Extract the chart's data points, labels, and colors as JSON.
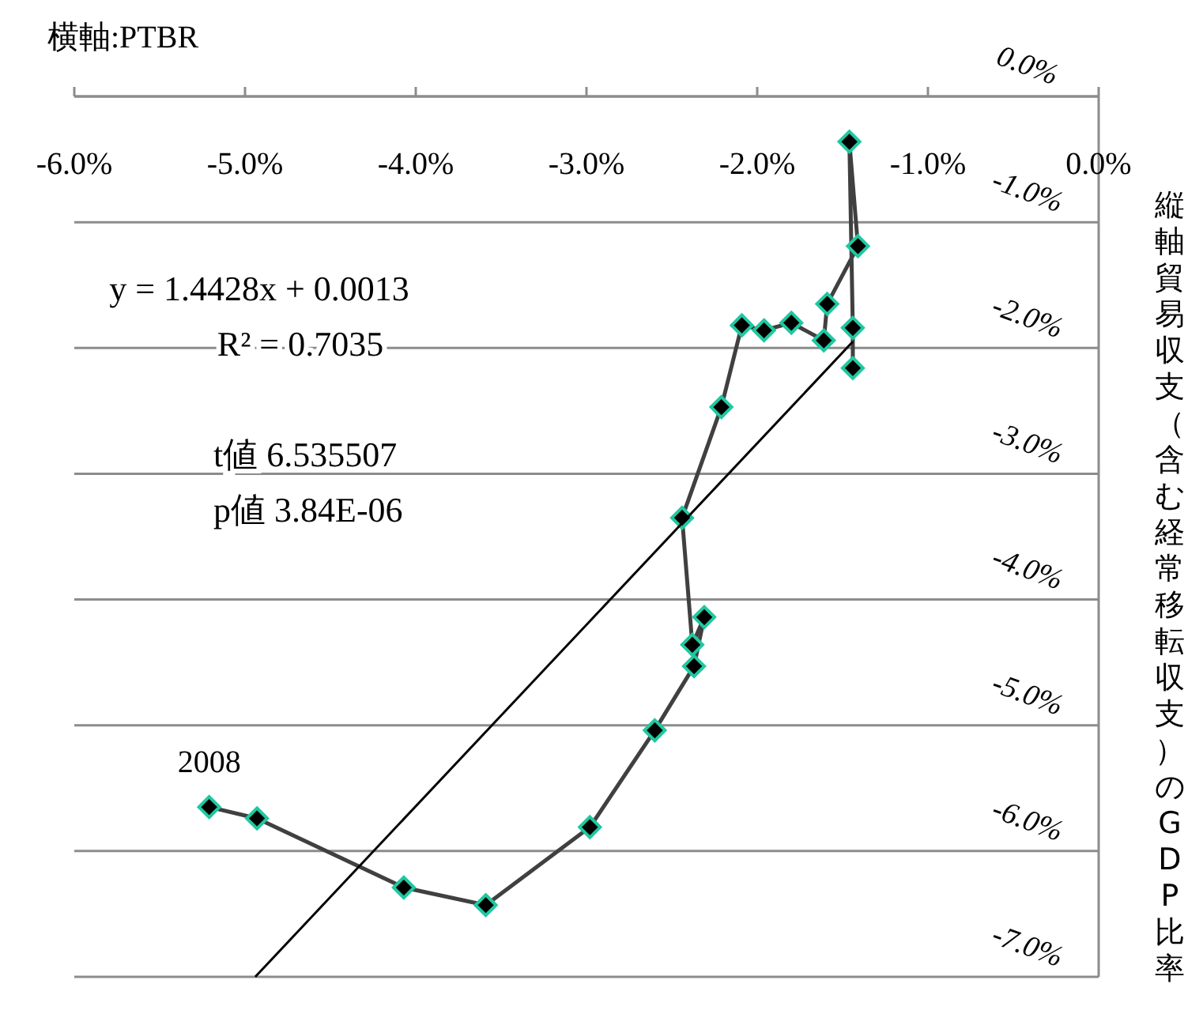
{
  "chart_data": {
    "type": "line",
    "xlabel": "横軸:PTBR",
    "ylabel": "縦軸貿易収支（含む経常移転収支）のGDP比率",
    "xlim": [
      -6,
      0
    ],
    "xticks": [
      {
        "value": -6,
        "label": "-6.0%"
      },
      {
        "value": -5,
        "label": "-5.0%"
      },
      {
        "value": -4,
        "label": "-4.0%"
      },
      {
        "value": -3,
        "label": "-3.0%"
      },
      {
        "value": -2,
        "label": "-2.0%"
      },
      {
        "value": -1,
        "label": "-1.0%"
      },
      {
        "value": 0,
        "label": "0.0%"
      }
    ],
    "ylim": [
      -7,
      0
    ],
    "yticks": [
      {
        "value": 0,
        "label": "0.0%"
      },
      {
        "value": -1,
        "label": "-1.0%"
      },
      {
        "value": -2,
        "label": "-2.0%"
      },
      {
        "value": -3,
        "label": "-3.0%"
      },
      {
        "value": -4,
        "label": "-4.0%"
      },
      {
        "value": -5,
        "label": "-5.0%"
      },
      {
        "value": -6,
        "label": "-6.0%"
      },
      {
        "value": -7,
        "label": "-7.0%"
      }
    ],
    "grid": "y",
    "series": [
      {
        "color": "#404040",
        "marker": "diamond",
        "x": [
          -5.21,
          -4.93,
          -4.07,
          -3.59,
          -2.98,
          -2.6,
          -2.37,
          -2.31,
          -2.38,
          -2.44,
          -2.21,
          -2.09,
          -1.96,
          -1.8,
          -1.61,
          -1.59,
          -1.41,
          -1.46,
          -1.44,
          -1.44
        ],
        "values": [
          -5.65,
          -5.74,
          -6.29,
          -6.43,
          -5.81,
          -5.04,
          -4.53,
          -4.14,
          -4.36,
          -3.35,
          -2.47,
          -1.82,
          -1.86,
          -1.8,
          -1.94,
          -1.65,
          -1.19,
          -0.36,
          -1.84,
          -2.16
        ]
      },
      {
        "color": "#000000",
        "marker": "none",
        "x": [
          -4.94,
          -1.44
        ],
        "values": [
          -7.0,
          -1.95
        ]
      }
    ],
    "annotations": [
      {
        "text": "2008",
        "x": -5.21,
        "y": -5.65
      },
      "y = 1.4428x + 0.0013",
      "R² = 0.7035",
      "t値  6.535507",
      "p値 3.84E-06"
    ]
  }
}
